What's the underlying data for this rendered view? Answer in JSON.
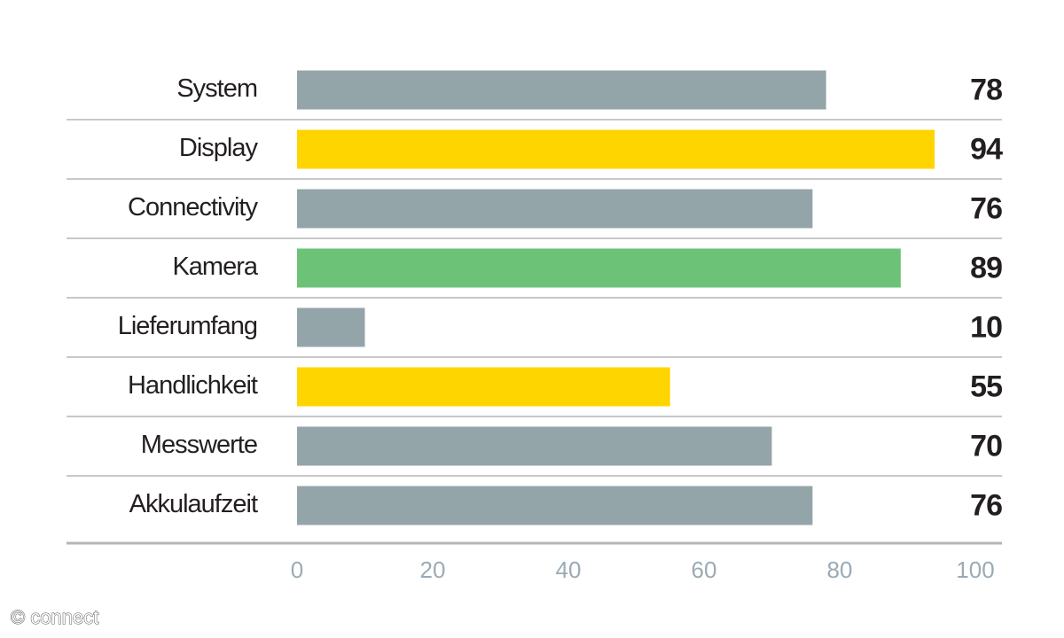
{
  "chart_data": {
    "type": "hbar",
    "categories": [
      "System",
      "Display",
      "Connectivity",
      "Kamera",
      "Lieferumfang",
      "Handlichkeit",
      "Messwerte",
      "Akkulaufzeit"
    ],
    "values": [
      78,
      94,
      76,
      89,
      10,
      55,
      70,
      76
    ],
    "colors": [
      "#94a5aa",
      "#ffd500",
      "#94a5aa",
      "#6cc276",
      "#94a5aa",
      "#ffd500",
      "#94a5aa",
      "#94a5aa"
    ],
    "xlim": [
      0,
      100
    ],
    "xticks": [
      0,
      20,
      40,
      60,
      80,
      100
    ],
    "watermark": "© connect"
  }
}
